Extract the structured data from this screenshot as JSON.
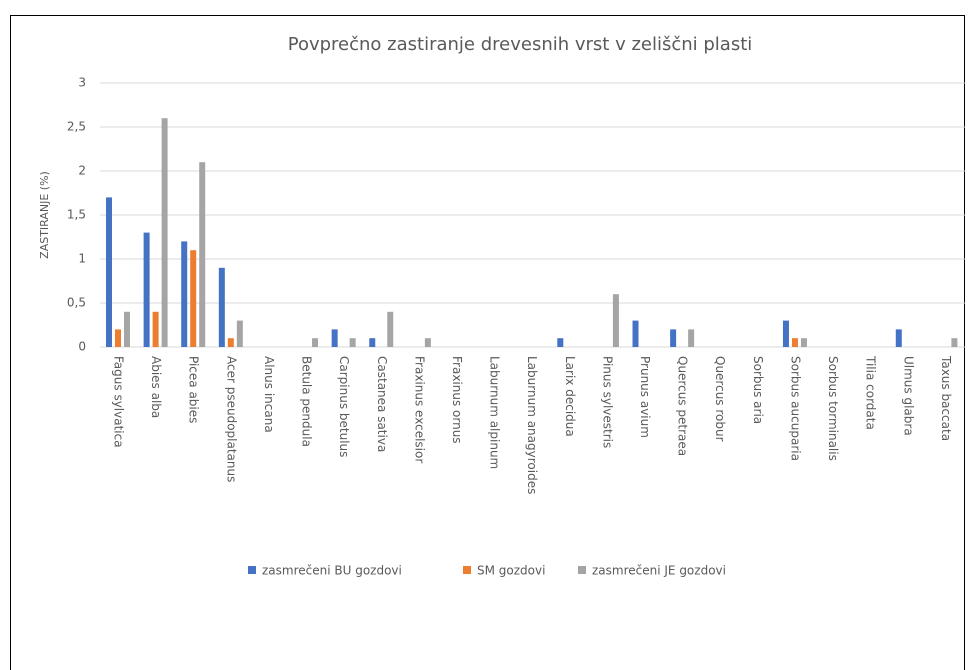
{
  "chart_data": {
    "type": "bar",
    "title": "Povprečno zastiranje drevesnih vrst v zeliščni plasti",
    "y_label": "ZASTIRANJE  (%)",
    "categories": [
      "Fagus sylvatica",
      "Abies alba",
      "Picea abies",
      "Acer pseudoplatanus",
      "Alnus incana",
      "Betula pendula",
      "Carpinus betulus",
      "Castanea sativa",
      "Fraxinus excelsior",
      "Fraxinus ornus",
      "Laburnum alpinum",
      "Laburnum anagyroides",
      "Larix decidua",
      "Pinus sylvestris",
      "Prunus avium",
      "Quercus petraea",
      "Quercus robur",
      "Sorbus aria",
      "Sorbus aucuparia",
      "Sorbus torminalis",
      "Tilia cordata",
      "Ulmus glabra",
      "Taxus baccata"
    ],
    "series": [
      {
        "name": "zasmrečeni BU gozdovi",
        "color": "#4472c4",
        "values": [
          1.7,
          1.3,
          1.2,
          0.9,
          0,
          0,
          0.2,
          0.1,
          0,
          0,
          0,
          0,
          0.1,
          0,
          0.3,
          0.2,
          0,
          0,
          0.3,
          0,
          0,
          0.2,
          0
        ]
      },
      {
        "name": "SM gozdovi",
        "color": "#ed7d31",
        "values": [
          0.2,
          0.4,
          1.1,
          0.1,
          0,
          0,
          0,
          0,
          0,
          0,
          0,
          0,
          0,
          0,
          0,
          0,
          0,
          0,
          0.1,
          0,
          0,
          0,
          0
        ]
      },
      {
        "name": "zasmrečeni JE gozdovi",
        "color": "#a5a5a5",
        "values": [
          0.4,
          2.6,
          2.1,
          0.3,
          0,
          0.1,
          0.1,
          0.4,
          0.1,
          0,
          0,
          0,
          0,
          0.6,
          0,
          0.2,
          0,
          0,
          0.1,
          0,
          0,
          0,
          0.1
        ]
      }
    ],
    "ylim": [
      0,
      3
    ],
    "yticks": [
      0,
      {
        "value": 0.5,
        "label": "0,5"
      },
      1,
      {
        "value": 1.5,
        "label": "1,5"
      },
      2,
      {
        "value": 2.5,
        "label": "2,5"
      },
      3
    ],
    "grid": true,
    "legend": "bottom"
  }
}
